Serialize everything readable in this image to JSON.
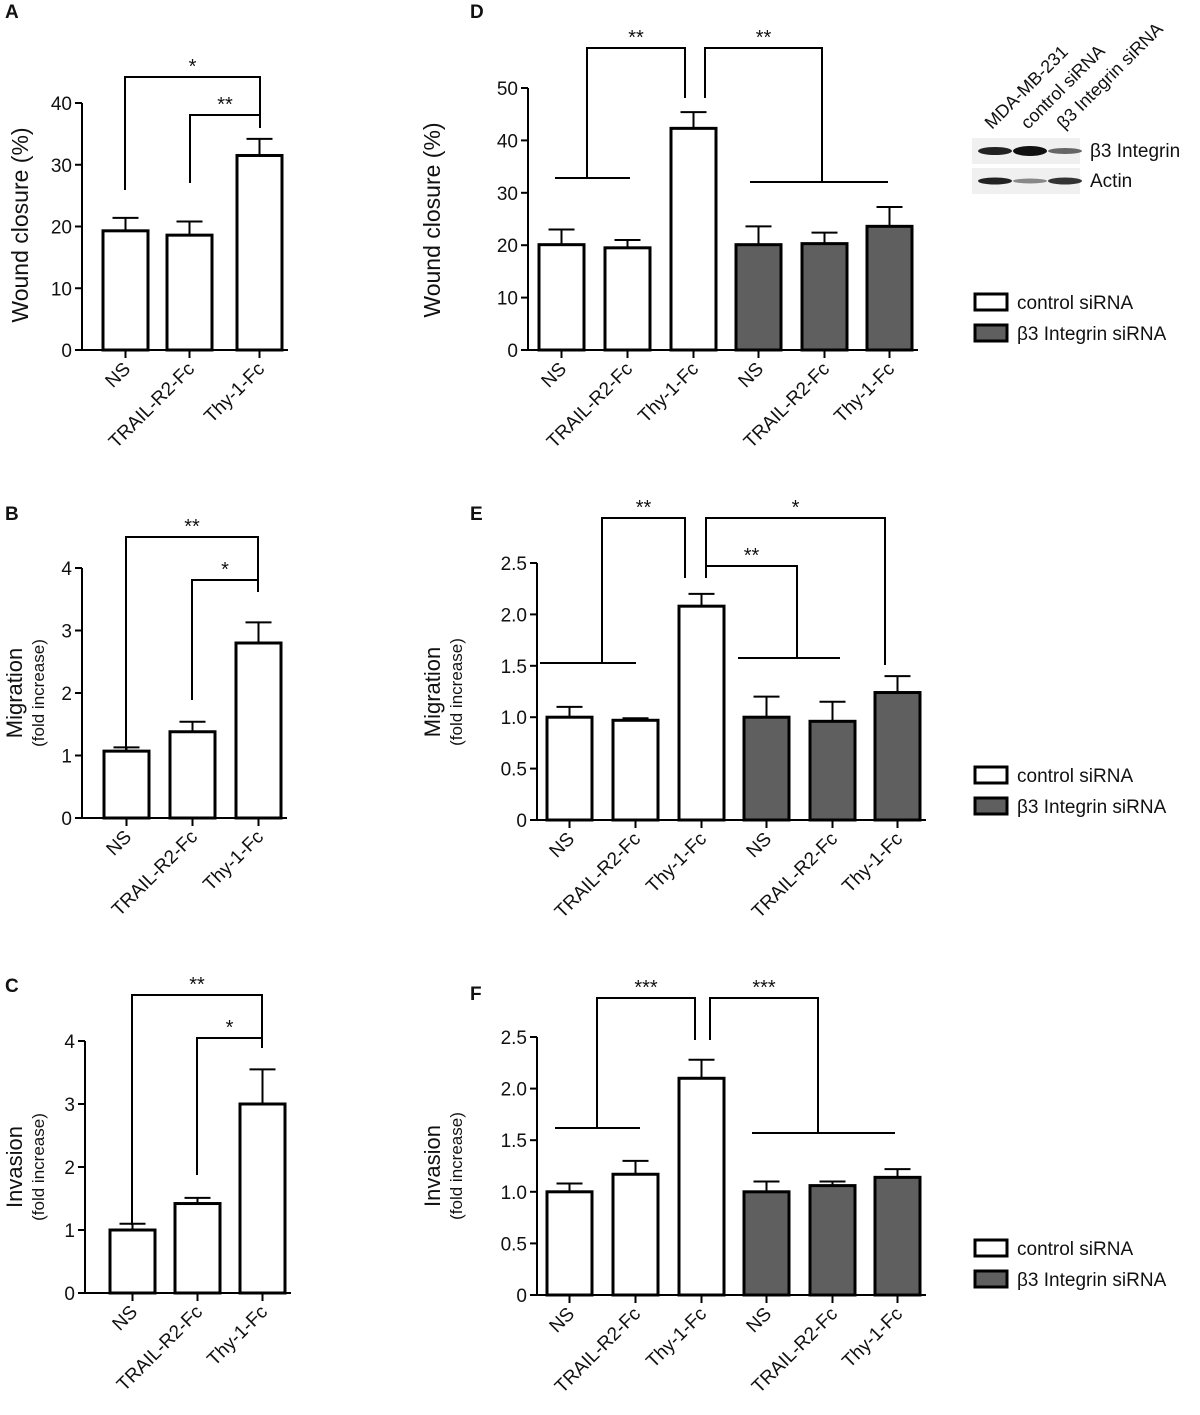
{
  "chart_data": [
    {
      "panel": "A",
      "type": "bar",
      "ylabel": "Wound closure (%)",
      "ylabel_sub": "",
      "ylim": [
        0,
        40
      ],
      "ytick_step": 10,
      "ytick_labels": [
        "0",
        "10",
        "20",
        "30",
        "40"
      ],
      "categories": [
        "NS",
        "TRAIL-R2-Fc",
        "Thy-1-Fc"
      ],
      "series": [
        {
          "name": "",
          "values": [
            19.3,
            18.6,
            31.5
          ],
          "errors": [
            2.1,
            2.2,
            2.7
          ],
          "groups": [
            0,
            0,
            0
          ]
        }
      ],
      "significance": [
        "*",
        "**"
      ]
    },
    {
      "panel": "B",
      "type": "bar",
      "ylabel": "Migration",
      "ylabel_sub": "(fold increase)",
      "ylim": [
        0,
        4
      ],
      "ytick_step": 1,
      "ytick_labels": [
        "0",
        "1",
        "2",
        "3",
        "4"
      ],
      "categories": [
        "NS",
        "TRAIL-R2-Fc",
        "Thy-1-Fc"
      ],
      "series": [
        {
          "name": "",
          "values": [
            1.07,
            1.38,
            2.8
          ],
          "errors": [
            0.06,
            0.16,
            0.33
          ],
          "groups": [
            0,
            0,
            0
          ]
        }
      ],
      "significance": [
        "**",
        "*"
      ]
    },
    {
      "panel": "C",
      "type": "bar",
      "ylabel": "Invasion",
      "ylabel_sub": "(fold increase)",
      "ylim": [
        0,
        4
      ],
      "ytick_step": 1,
      "ytick_labels": [
        "0",
        "1",
        "2",
        "3",
        "4"
      ],
      "categories": [
        "NS",
        "TRAIL-R2-Fc",
        "Thy-1-Fc"
      ],
      "series": [
        {
          "name": "",
          "values": [
            1.0,
            1.42,
            3.0
          ],
          "errors": [
            0.1,
            0.09,
            0.55
          ],
          "groups": [
            0,
            0,
            0
          ]
        }
      ],
      "significance": [
        "**",
        "*"
      ]
    },
    {
      "panel": "D",
      "type": "bar",
      "ylabel": "Wound closure (%)",
      "ylabel_sub": "",
      "ylim": [
        0,
        50
      ],
      "ytick_step": 10,
      "ytick_labels": [
        "0",
        "10",
        "20",
        "30",
        "40",
        "50"
      ],
      "categories": [
        "NS",
        "TRAIL-R2-Fc",
        "Thy-1-Fc",
        "NS",
        "TRAIL-R2-Fc",
        "Thy-1-Fc"
      ],
      "series": [
        {
          "name": "control siRNA / β3 Integrin siRNA",
          "values": [
            20.1,
            19.5,
            42.3,
            20.1,
            20.3,
            23.6
          ],
          "errors": [
            2.9,
            1.5,
            3.1,
            3.5,
            2.1,
            3.7
          ],
          "groups": [
            0,
            0,
            0,
            1,
            1,
            1
          ]
        }
      ],
      "significance": [
        "**",
        "**"
      ],
      "legend": [
        "control siRNA",
        "β3 Integrin siRNA"
      ]
    },
    {
      "panel": "E",
      "type": "bar",
      "ylabel": "Migration",
      "ylabel_sub": "(fold increase)",
      "ylim": [
        0,
        2.5
      ],
      "ytick_step": 0.5,
      "ytick_labels": [
        "0",
        "0.5",
        "1.0",
        "1.5",
        "2.0",
        "2.5"
      ],
      "categories": [
        "NS",
        "TRAIL-R2-Fc",
        "Thy-1-Fc",
        "NS",
        "TRAIL-R2-Fc",
        "Thy-1-Fc"
      ],
      "series": [
        {
          "name": "control siRNA / β3 Integrin siRNA",
          "values": [
            1.0,
            0.97,
            2.08,
            1.0,
            0.96,
            1.24
          ],
          "errors": [
            0.1,
            0.02,
            0.12,
            0.2,
            0.19,
            0.16
          ],
          "groups": [
            0,
            0,
            0,
            1,
            1,
            1
          ]
        }
      ],
      "significance": [
        "**",
        "**",
        "*"
      ],
      "legend": [
        "control siRNA",
        "β3 Integrin siRNA"
      ]
    },
    {
      "panel": "F",
      "type": "bar",
      "ylabel": "Invasion",
      "ylabel_sub": "(fold increase)",
      "ylim": [
        0,
        2.5
      ],
      "ytick_step": 0.5,
      "ytick_labels": [
        "0",
        "0.5",
        "1.0",
        "1.5",
        "2.0",
        "2.5"
      ],
      "categories": [
        "NS",
        "TRAIL-R2-Fc",
        "Thy-1-Fc",
        "NS",
        "TRAIL-R2-Fc",
        "Thy-1-Fc"
      ],
      "series": [
        {
          "name": "control siRNA / β3 Integrin siRNA",
          "values": [
            1.0,
            1.17,
            2.1,
            1.0,
            1.06,
            1.14
          ],
          "errors": [
            0.08,
            0.13,
            0.18,
            0.1,
            0.04,
            0.08
          ],
          "groups": [
            0,
            0,
            0,
            1,
            1,
            1
          ]
        }
      ],
      "significance": [
        "***",
        "***"
      ],
      "legend": [
        "control siRNA",
        "β3 Integrin siRNA"
      ]
    }
  ],
  "blot": {
    "lanes": [
      "MDA-MB-231",
      "control siRNA",
      "β3 Integrin siRNA"
    ],
    "rows": [
      "β3 Integrin",
      "Actin"
    ]
  },
  "colors": {
    "control": "#ffffff",
    "integrin": "#5f5f5f",
    "stroke": "#000000"
  }
}
